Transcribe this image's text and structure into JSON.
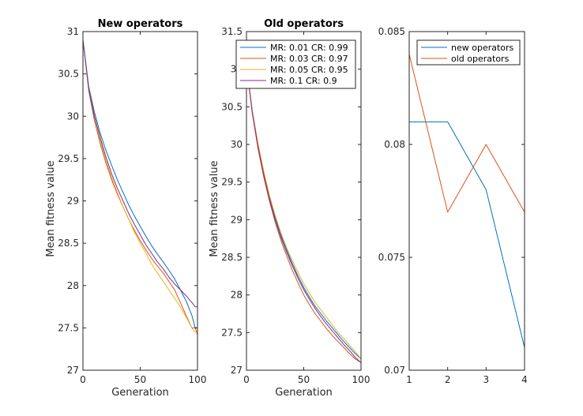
{
  "colors": {
    "blue": "#0072BD",
    "orange": "#D95319",
    "yellow": "#EDB120",
    "purple": "#7E2F8E"
  },
  "chart_data": [
    {
      "type": "line",
      "title": "New operators",
      "xlabel": "Generation",
      "ylabel": "Mean fitness value",
      "xlim": [
        0,
        100
      ],
      "ylim": [
        27,
        31
      ],
      "xticks": [
        "0",
        "50",
        "100"
      ],
      "yticks": [
        "27",
        "27.5",
        "28",
        "28.5",
        "29",
        "29.5",
        "30",
        "30.5",
        "31"
      ],
      "legend": null,
      "series": [
        {
          "color": "#0072BD",
          "x": [
            0,
            5,
            10,
            15,
            20,
            25,
            30,
            35,
            40,
            45,
            50,
            55,
            60,
            65,
            70,
            75,
            80,
            85,
            90,
            95,
            98,
            100
          ],
          "y": [
            30.9,
            30.35,
            30.05,
            29.8,
            29.6,
            29.42,
            29.25,
            29.1,
            28.95,
            28.82,
            28.7,
            28.58,
            28.47,
            28.37,
            28.28,
            28.18,
            28.08,
            27.95,
            27.82,
            27.65,
            27.5,
            27.5
          ]
        },
        {
          "color": "#D95319",
          "x": [
            0,
            5,
            10,
            15,
            20,
            25,
            30,
            35,
            40,
            45,
            50,
            55,
            60,
            65,
            70,
            75,
            80,
            85,
            90,
            95,
            98,
            100
          ],
          "y": [
            30.9,
            30.3,
            29.95,
            29.68,
            29.45,
            29.25,
            29.08,
            28.93,
            28.78,
            28.65,
            28.53,
            28.42,
            28.32,
            28.23,
            28.15,
            28.05,
            27.95,
            27.8,
            27.65,
            27.5,
            27.5,
            27.42
          ]
        },
        {
          "color": "#EDB120",
          "x": [
            0,
            5,
            10,
            15,
            20,
            25,
            30,
            35,
            40,
            45,
            50,
            55,
            60,
            65,
            70,
            75,
            80,
            85,
            90,
            95,
            98,
            100
          ],
          "y": [
            30.9,
            30.32,
            30.0,
            29.72,
            29.48,
            29.28,
            29.1,
            28.93,
            28.78,
            28.63,
            28.5,
            28.38,
            28.25,
            28.15,
            28.05,
            27.95,
            27.85,
            27.75,
            27.63,
            27.5,
            27.45,
            27.45
          ]
        },
        {
          "color": "#7E2F8E",
          "x": [
            0,
            5,
            10,
            15,
            20,
            25,
            30,
            35,
            40,
            45,
            50,
            55,
            60,
            65,
            70,
            75,
            80,
            85,
            90,
            95,
            98,
            100
          ],
          "y": [
            30.9,
            30.33,
            30.0,
            29.75,
            29.52,
            29.32,
            29.15,
            29.0,
            28.85,
            28.72,
            28.6,
            28.48,
            28.38,
            28.28,
            28.2,
            28.1,
            28.02,
            27.95,
            27.88,
            27.8,
            27.75,
            27.75
          ]
        }
      ]
    },
    {
      "type": "line",
      "title": "Old operators",
      "xlabel": "Generation",
      "ylabel": "Mean fitness value",
      "xlim": [
        0,
        100
      ],
      "ylim": [
        27,
        31.5
      ],
      "xticks": [
        "0",
        "50",
        "100"
      ],
      "yticks": [
        "27",
        "27.5",
        "28",
        "28.5",
        "29",
        "29.5",
        "30",
        "30.5",
        "31",
        "31.5"
      ],
      "legend": "top",
      "series": [
        {
          "name": "MR: 0.01 CR: 0.99",
          "color": "#0072BD",
          "x": [
            0,
            5,
            10,
            15,
            20,
            25,
            30,
            35,
            40,
            45,
            50,
            55,
            60,
            65,
            70,
            75,
            80,
            85,
            90,
            95,
            100
          ],
          "y": [
            31.05,
            30.45,
            30.0,
            29.62,
            29.3,
            29.03,
            28.8,
            28.6,
            28.42,
            28.25,
            28.1,
            27.97,
            27.85,
            27.75,
            27.65,
            27.56,
            27.47,
            27.38,
            27.3,
            27.22,
            27.15
          ]
        },
        {
          "name": "MR: 0.03 CR: 0.97",
          "color": "#D95319",
          "x": [
            0,
            5,
            10,
            15,
            20,
            25,
            30,
            35,
            40,
            45,
            50,
            55,
            60,
            65,
            70,
            75,
            80,
            85,
            90,
            95,
            100
          ],
          "y": [
            31.05,
            30.42,
            29.95,
            29.57,
            29.25,
            28.97,
            28.73,
            28.52,
            28.33,
            28.16,
            28.0,
            27.87,
            27.75,
            27.65,
            27.55,
            27.46,
            27.38,
            27.3,
            27.22,
            27.15,
            27.1
          ]
        },
        {
          "name": "MR: 0.05 CR: 0.95",
          "color": "#EDB120",
          "x": [
            0,
            5,
            10,
            15,
            20,
            25,
            30,
            35,
            40,
            45,
            50,
            55,
            60,
            65,
            70,
            75,
            80,
            85,
            90,
            95,
            100
          ],
          "y": [
            31.05,
            30.45,
            30.02,
            29.65,
            29.33,
            29.06,
            28.83,
            28.63,
            28.46,
            28.3,
            28.15,
            28.02,
            27.9,
            27.8,
            27.7,
            27.6,
            27.5,
            27.42,
            27.33,
            27.25,
            27.15
          ]
        },
        {
          "name": "MR: 0.1 CR: 0.9",
          "color": "#7E2F8E",
          "x": [
            0,
            5,
            10,
            15,
            20,
            25,
            30,
            35,
            40,
            45,
            50,
            55,
            60,
            65,
            70,
            75,
            80,
            85,
            90,
            95,
            100
          ],
          "y": [
            31.05,
            30.43,
            29.98,
            29.6,
            29.28,
            29.0,
            28.77,
            28.57,
            28.39,
            28.22,
            28.07,
            27.94,
            27.82,
            27.71,
            27.61,
            27.52,
            27.43,
            27.34,
            27.26,
            27.17,
            27.1
          ]
        }
      ]
    },
    {
      "type": "line",
      "title": "",
      "xlabel": "",
      "ylabel": "",
      "xlim": [
        1,
        4
      ],
      "ylim": [
        0.07,
        0.085
      ],
      "xticks": [
        "1",
        "2",
        "3",
        "4"
      ],
      "yticks": [
        "0.07",
        "0.075",
        "0.08",
        "0.085"
      ],
      "legend": "top-right",
      "series": [
        {
          "name": "new operators",
          "color": "#0072BD",
          "x": [
            1,
            2,
            3,
            4
          ],
          "y": [
            0.081,
            0.081,
            0.078,
            0.071
          ]
        },
        {
          "name": "old operators",
          "color": "#D95319",
          "x": [
            1,
            2,
            3,
            4
          ],
          "y": [
            0.084,
            0.077,
            0.08,
            0.077
          ]
        }
      ]
    }
  ]
}
